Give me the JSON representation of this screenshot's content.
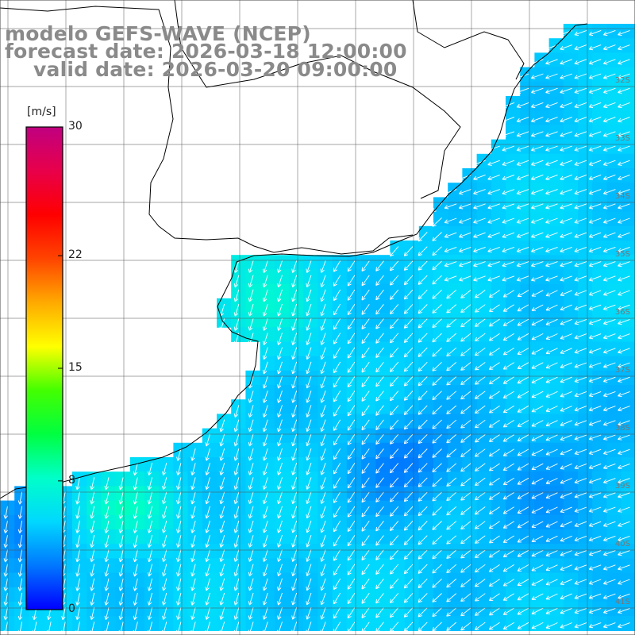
{
  "titles": {
    "line1": "modelo GEFS-WAVE (NCEP)",
    "line2": "forecast date: 2026-03-18 12:00:00",
    "line3": "valid date: 2026-03-20 09:00:00"
  },
  "colorbar": {
    "unit": "[m/s]",
    "min": 0,
    "max": 30,
    "ticks": [
      {
        "value": 30,
        "label": "30"
      },
      {
        "value": 22,
        "label": "22"
      },
      {
        "value": 15,
        "label": "15"
      },
      {
        "value": 8,
        "label": "8"
      },
      {
        "value": 0,
        "label": "0"
      }
    ],
    "colors": [
      "#0000ff",
      "#0077ff",
      "#00d8ff",
      "#00ffc8",
      "#00ff40",
      "#44ff00",
      "#ffff00",
      "#ffaa00",
      "#ff4400",
      "#ff0000",
      "#e8004a",
      "#c00080"
    ]
  },
  "lat_labels": [
    "32S",
    "33S",
    "34S",
    "35S",
    "36S",
    "37S",
    "38S",
    "39S",
    "40S",
    "41S"
  ],
  "field": {
    "speed_low": 4,
    "speed_high": 12,
    "arrow_color": "#ffffff",
    "land_color": "#ffffff",
    "coast_color": "#000000",
    "grid_color": "#555555"
  }
}
